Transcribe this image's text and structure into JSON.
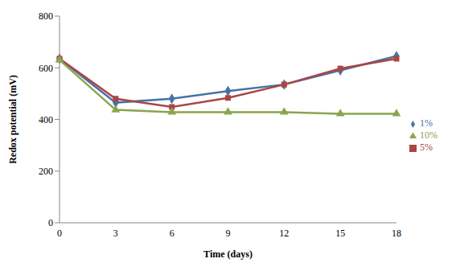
{
  "chart_data": {
    "type": "line",
    "x_label": "Time (days)",
    "y_label": "Redox potential (mV)",
    "categories": [
      "0",
      "3",
      "6",
      "9",
      "12",
      "15",
      "18"
    ],
    "series": [
      {
        "name": "1%",
        "color": "#4572A7",
        "marker": "diamond",
        "values": [
          635,
          465,
          480,
          510,
          535,
          590,
          645
        ]
      },
      {
        "name": "5%",
        "color": "#AA4643",
        "marker": "square",
        "values": [
          635,
          480,
          448,
          483,
          535,
          597,
          635
        ]
      },
      {
        "name": "10%",
        "color": "#89A54E",
        "marker": "triangle",
        "values": [
          630,
          437,
          428,
          428,
          428,
          422,
          422
        ]
      }
    ],
    "ylim": [
      0,
      800
    ],
    "yticks": [
      0,
      200,
      400,
      600,
      800
    ],
    "grid": false,
    "legend": "right"
  }
}
